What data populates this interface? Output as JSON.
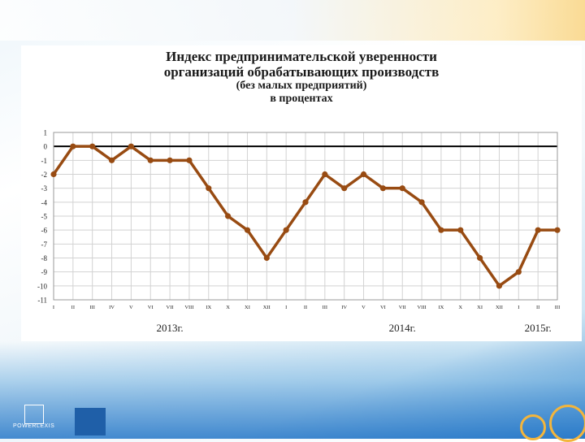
{
  "title_lines": [
    "Индекс предпринимательской уверенности",
    "организаций обрабатывающих производств"
  ],
  "subtitle_lines": [
    "(без малых предприятий)",
    "в процентах"
  ],
  "brand": "POWERLEXIS",
  "colors": {
    "line": "#984b12",
    "grid": "#d2d2d2",
    "zero_line": "#000000",
    "panel": "#ffffff",
    "brand_blue": "#1f5fa8"
  },
  "chart_data": {
    "type": "line",
    "title": "Индекс предпринимательской уверенности организаций обрабатывающих производств (без малых предприятий) в процентах",
    "categories": [
      "I",
      "II",
      "III",
      "IV",
      "V",
      "VI",
      "VII",
      "VIII",
      "IX",
      "X",
      "XI",
      "XII",
      "I",
      "II",
      "III",
      "IV",
      "V",
      "VI",
      "VII",
      "VIII",
      "IX",
      "X",
      "XI",
      "XII",
      "I",
      "II",
      "III"
    ],
    "year_labels": [
      {
        "label": "2013г.",
        "category_index": 6
      },
      {
        "label": "2014г.",
        "category_index": 18
      },
      {
        "label": "2015г.",
        "category_index": 25
      }
    ],
    "series": [
      {
        "values": [
          -2,
          0,
          0,
          -1,
          0,
          -1,
          -1,
          -1,
          -3,
          -5,
          -6,
          -8,
          -6,
          -4,
          -2,
          -3,
          -2,
          -3,
          -3,
          -4,
          -6,
          -6,
          -8,
          -10,
          -9,
          -6,
          -6
        ]
      }
    ],
    "ylim": [
      -11,
      1
    ],
    "yticks": [
      1,
      0,
      -1,
      -2,
      -3,
      -4,
      -5,
      -6,
      -7,
      -8,
      -9,
      -10,
      -11
    ],
    "grid": true,
    "legend": "none"
  }
}
